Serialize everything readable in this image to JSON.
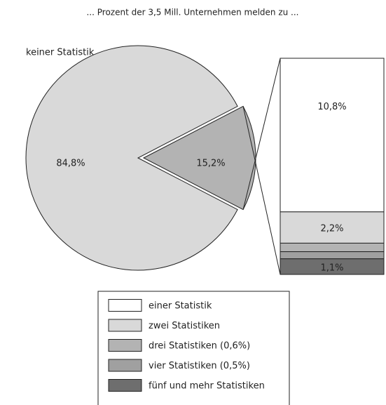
{
  "chart_data": {
    "type": "pie",
    "title": "... Prozent der 3,5 Mill. Unternehmen melden zu ...",
    "categories": [
      "keiner Statistik",
      null
    ],
    "values": [
      84.8,
      15.2
    ],
    "value_labels": [
      "84,8%",
      "15,2%"
    ],
    "colors": [
      "#d9d9d9",
      "#b3b3b3"
    ],
    "bar": {
      "categories": [
        "einer Statistik",
        "zwei Statistiken",
        "drei Statistiken (0,6%)",
        "vier Statistiken (0,5%)",
        "fünf und mehr Statistiken"
      ],
      "values": [
        10.8,
        2.2,
        0.6,
        0.5,
        1.1
      ],
      "value_labels": [
        "10,8%",
        "2,2%",
        null,
        null,
        "1,1%"
      ],
      "colors": [
        "#ffffff",
        "#d9d9d9",
        "#b3b3b3",
        "#a0a0a0",
        "#6e6e6e"
      ]
    }
  }
}
